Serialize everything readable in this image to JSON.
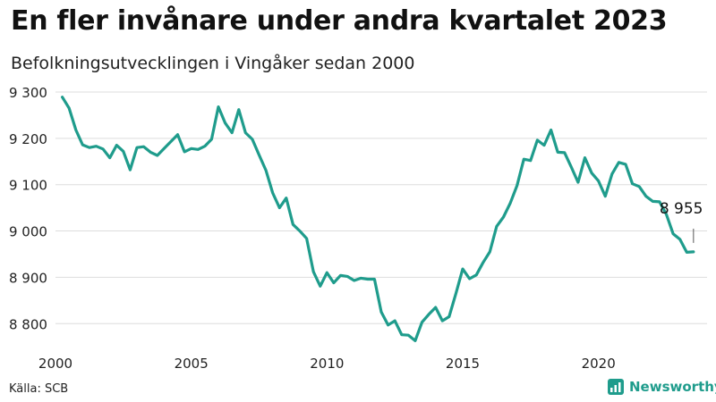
{
  "header": {
    "title": "En fler invånare under andra kvartalet 2023",
    "subtitle": "Befolkningsutvecklingen i Vingåker sedan 2000"
  },
  "footer": {
    "source": "Källa: SCB",
    "brand": "Newsworthy"
  },
  "colors": {
    "line": "#1f9c8c",
    "grid": "#dddddd",
    "brand": "#1f9c8c"
  },
  "chart_data": {
    "type": "line",
    "title": "En fler invånare under andra kvartalet 2023",
    "subtitle": "Befolkningsutvecklingen i Vingåker sedan 2000",
    "xlabel": "",
    "ylabel": "",
    "x_ticks": [
      2000,
      2005,
      2010,
      2015,
      2020
    ],
    "y_ticks": [
      8800,
      8900,
      9000,
      9100,
      9200,
      9300
    ],
    "y_tick_labels": [
      "8 800",
      "8 900",
      "9 000",
      "9 100",
      "9 200",
      "9 300"
    ],
    "ylim": [
      8760,
      9300
    ],
    "xlim": [
      2000,
      2024
    ],
    "grid": true,
    "annotation": {
      "label": "8 955",
      "x": 2023.5,
      "y": 8955
    },
    "series": [
      {
        "x": [
          2000.25,
          2000.5,
          2000.75,
          2001,
          2001.25,
          2001.5,
          2001.75,
          2002,
          2002.25,
          2002.5,
          2002.75,
          2003,
          2003.25,
          2003.5,
          2003.75,
          2004,
          2004.25,
          2004.5,
          2004.75,
          2005,
          2005.25,
          2005.5,
          2005.75,
          2006,
          2006.25,
          2006.5,
          2006.75,
          2007,
          2007.25,
          2007.5,
          2007.75,
          2008,
          2008.25,
          2008.5,
          2008.75,
          2009,
          2009.25,
          2009.5,
          2009.75,
          2010,
          2010.25,
          2010.5,
          2010.75,
          2011,
          2011.25,
          2011.5,
          2011.75,
          2012,
          2012.25,
          2012.5,
          2012.75,
          2013,
          2013.25,
          2013.5,
          2013.75,
          2014,
          2014.25,
          2014.5,
          2014.75,
          2015,
          2015.25,
          2015.5,
          2015.75,
          2016,
          2016.25,
          2016.5,
          2016.75,
          2017,
          2017.25,
          2017.5,
          2017.75,
          2018,
          2018.25,
          2018.5,
          2018.75,
          2019,
          2019.25,
          2019.5,
          2019.75,
          2020,
          2020.25,
          2020.5,
          2020.75,
          2021,
          2021.25,
          2021.5,
          2021.75,
          2022,
          2022.25,
          2022.5,
          2022.75,
          2023,
          2023.25,
          2023.5
        ],
        "values": [
          9289,
          9265,
          9218,
          9186,
          9180,
          9183,
          9177,
          9158,
          9185,
          9172,
          9132,
          9180,
          9182,
          9170,
          9163,
          9178,
          9193,
          9208,
          9171,
          9178,
          9176,
          9183,
          9198,
          9268,
          9233,
          9212,
          9262,
          9212,
          9198,
          9164,
          9131,
          9082,
          9050,
          9071,
          9014,
          9000,
          8984,
          8912,
          8881,
          8910,
          8888,
          8904,
          8902,
          8893,
          8898,
          8896,
          8896,
          8825,
          8797,
          8806,
          8776,
          8775,
          8763,
          8803,
          8820,
          8835,
          8806,
          8815,
          8865,
          8918,
          8897,
          8905,
          8932,
          8955,
          9010,
          9030,
          9060,
          9098,
          9155,
          9152,
          9196,
          9185,
          9218,
          9170,
          9169,
          9138,
          9105,
          9158,
          9125,
          9108,
          9075,
          9123,
          9148,
          9144,
          9102,
          9096,
          9075,
          9064,
          9063,
          9036,
          8994,
          8982,
          8954,
          8955
        ]
      }
    ]
  }
}
